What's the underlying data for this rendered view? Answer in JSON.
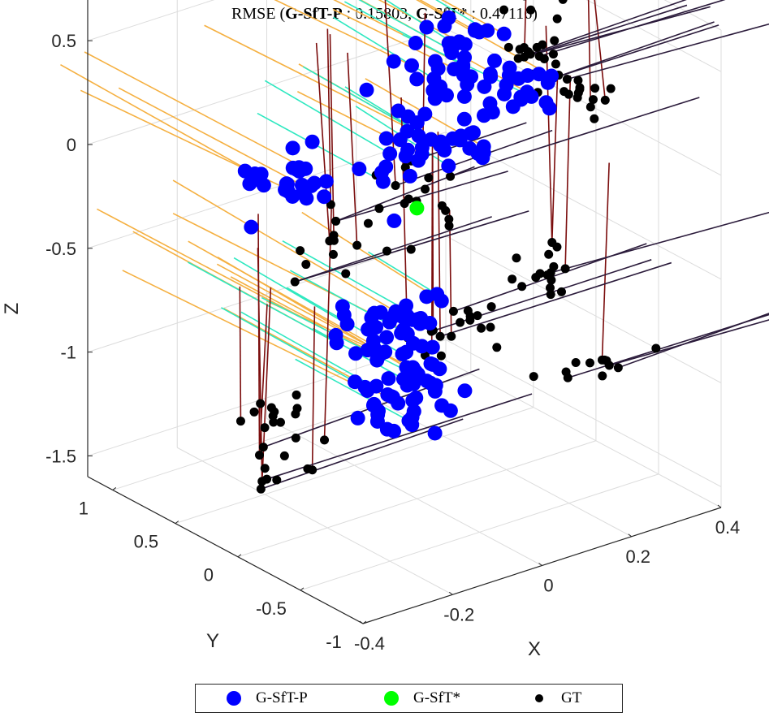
{
  "chart_data": {
    "type": "scatter",
    "title": {
      "prefix": "RMSE (",
      "pred_name": "G-SfT-P",
      "pred_value": ": 0.15803, ",
      "alt_name": "G-SfT*",
      "alt_value": ": 0.47116)"
    },
    "xlabel": "X",
    "ylabel": "Y",
    "zlabel": "Z",
    "xlim": [
      -0.4,
      0.4
    ],
    "ylim": [
      -1,
      1.2
    ],
    "zlim": [
      -1.6,
      0.7
    ],
    "x_ticks": [
      "-0.4",
      "-0.2",
      "0",
      "0.2",
      "0.4"
    ],
    "y_ticks": [
      "-1",
      "-0.5",
      "0",
      "0.5",
      "1"
    ],
    "z_ticks": [
      "0.5",
      "0",
      "-0.5",
      "-1",
      "-1.5"
    ],
    "grid": true,
    "legend_position": "bottom",
    "series": [
      {
        "name": "G-SfT-P",
        "color": "#0000ff",
        "marker": "large-dot"
      },
      {
        "name": "G-SfT*",
        "color": "#00ff00",
        "marker": "large-dot"
      },
      {
        "name": "GT",
        "color": "#000000",
        "marker": "small-dot"
      }
    ],
    "green_point": [
      0.0,
      0.0,
      -0.2
    ],
    "pred_clusters": [
      {
        "c": [
          -0.05,
          0.05,
          -0.75
        ],
        "s": [
          0.06,
          0.1,
          0.08
        ],
        "n": 40
      },
      {
        "c": [
          -0.05,
          -0.1,
          -1.05
        ],
        "s": [
          0.06,
          0.08,
          0.08
        ],
        "n": 45
      },
      {
        "c": [
          -0.15,
          0.5,
          -0.1
        ],
        "s": [
          0.05,
          0.12,
          0.08
        ],
        "n": 25
      },
      {
        "c": [
          0.05,
          0.3,
          0.0
        ],
        "s": [
          0.05,
          0.15,
          0.12
        ],
        "n": 25
      },
      {
        "c": [
          0.12,
          0.0,
          0.45
        ],
        "s": [
          0.05,
          0.1,
          0.12
        ],
        "n": 35
      },
      {
        "c": [
          0.2,
          -0.2,
          0.3
        ],
        "s": [
          0.04,
          0.1,
          0.05
        ],
        "n": 18
      },
      {
        "c": [
          0.1,
          0.1,
          0.0
        ],
        "s": [
          0.05,
          0.1,
          0.1
        ],
        "n": 20
      }
    ],
    "gt_clusters": [
      {
        "c": [
          0.05,
          -0.1,
          -0.8
        ],
        "s": [
          0.05,
          0.05,
          0.05
        ],
        "n": 18
      },
      {
        "c": [
          -0.3,
          0.1,
          -1.0
        ],
        "s": [
          0.05,
          0.08,
          0.05
        ],
        "n": 12
      },
      {
        "c": [
          0.25,
          -0.4,
          -1.0
        ],
        "s": [
          0.05,
          0.08,
          0.05
        ],
        "n": 12
      },
      {
        "c": [
          0.2,
          -0.3,
          -0.6
        ],
        "s": [
          0.04,
          0.08,
          0.08
        ],
        "n": 16
      },
      {
        "c": [
          -0.1,
          0.3,
          -0.4
        ],
        "s": [
          0.05,
          0.1,
          0.08
        ],
        "n": 14
      },
      {
        "c": [
          0.25,
          0.0,
          0.4
        ],
        "s": [
          0.04,
          0.1,
          0.1
        ],
        "n": 24
      },
      {
        "c": [
          0.3,
          -0.3,
          0.25
        ],
        "s": [
          0.03,
          0.1,
          0.05
        ],
        "n": 14
      },
      {
        "c": [
          -0.25,
          0.3,
          -1.35
        ],
        "s": [
          0.05,
          0.08,
          0.05
        ],
        "n": 12
      },
      {
        "c": [
          0.05,
          0.2,
          -0.2
        ],
        "s": [
          0.05,
          0.1,
          0.1
        ],
        "n": 16
      }
    ],
    "axis_lines": [
      {
        "color": "#f5b041",
        "direction": [
          0,
          1.6,
          0
        ],
        "count": 28
      },
      {
        "color": "#2ee8c0",
        "direction": [
          0,
          1.0,
          0
        ],
        "count": 22
      },
      {
        "color": "#7b0d0d",
        "direction": [
          0,
          0,
          1.0
        ],
        "count": 26
      },
      {
        "color": "#2b1b3b",
        "direction": [
          0.5,
          0,
          0
        ],
        "count": 24
      }
    ]
  },
  "legend": {
    "items": [
      {
        "label": "G-SfT-P",
        "color": "#0000ff"
      },
      {
        "label": "G-SfT*",
        "color": "#00ff00"
      },
      {
        "label": "GT",
        "color": "#000000"
      }
    ]
  }
}
